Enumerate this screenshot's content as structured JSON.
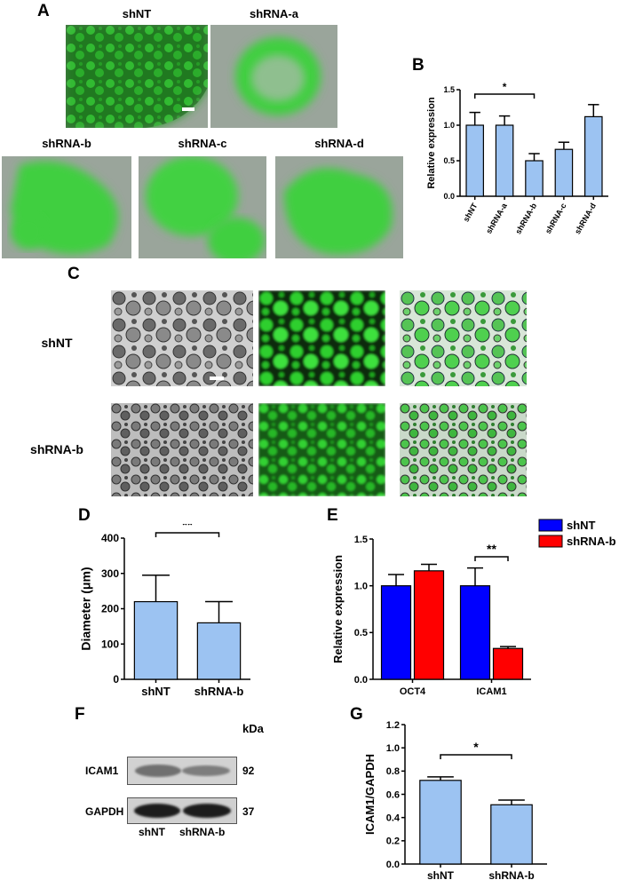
{
  "panel_labels": {
    "A": "A",
    "B": "B",
    "C": "C",
    "D": "D",
    "E": "E",
    "F": "F",
    "G": "G"
  },
  "panel_a": {
    "captions": [
      "shNT",
      "shRNA-a",
      "shRNA-b",
      "shRNA-c",
      "shRNA-d"
    ]
  },
  "panel_c": {
    "row_labels": [
      "shNT",
      "shRNA-b"
    ]
  },
  "panel_f": {
    "kda_label": "kDa",
    "rows": [
      {
        "label": "ICAM1",
        "kda": "92"
      },
      {
        "label": "GAPDH",
        "kda": "37"
      }
    ],
    "lanes": [
      "shNT",
      "shRNA-b"
    ]
  },
  "colors": {
    "bar_blue": "#9cc3f2",
    "series_blue": "#0000ff",
    "series_red": "#ff0000",
    "fluor_green": "#3ddc3d"
  },
  "chart_data": [
    {
      "id": "B",
      "type": "bar",
      "categories": [
        "shNT",
        "shRNA-a",
        "shRNA-b",
        "shRNA-c",
        "shRNA-d"
      ],
      "values": [
        1.0,
        1.0,
        0.5,
        0.66,
        1.12
      ],
      "errors": [
        0.18,
        0.13,
        0.1,
        0.1,
        0.17
      ],
      "ylabel": "Relative expression",
      "ylim": [
        0,
        1.5
      ],
      "yticks": [
        "0.0",
        "0.5",
        "1.0",
        "1.5"
      ],
      "significance": {
        "from": "shNT",
        "to": "shRNA-b",
        "label": "*"
      }
    },
    {
      "id": "D",
      "type": "bar",
      "categories": [
        "shNT",
        "shRNA-b"
      ],
      "values": [
        220,
        160
      ],
      "errors": [
        75,
        60
      ],
      "ylabel": "Diameter (μm)",
      "ylim": [
        0,
        400
      ],
      "yticks": [
        "0",
        "100",
        "200",
        "300",
        "400"
      ],
      "significance": {
        "from": "shNT",
        "to": "shRNA-b",
        "label": "**"
      }
    },
    {
      "id": "E",
      "type": "bar",
      "categories": [
        "OCT4",
        "ICAM1"
      ],
      "series": [
        {
          "name": "shNT",
          "values": [
            1.0,
            1.0
          ],
          "errors": [
            0.12,
            0.19
          ]
        },
        {
          "name": "shRNA-b",
          "values": [
            1.16,
            0.33
          ],
          "errors": [
            0.07,
            0.02
          ]
        }
      ],
      "ylabel": "Relative expression",
      "ylim": [
        0,
        1.5
      ],
      "yticks": [
        "0.0",
        "0.5",
        "1.0",
        "1.5"
      ],
      "legend": "top-right",
      "significance": {
        "category": "ICAM1",
        "label": "**"
      }
    },
    {
      "id": "G",
      "type": "bar",
      "categories": [
        "shNT",
        "shRNA-b"
      ],
      "values": [
        0.72,
        0.51
      ],
      "errors": [
        0.03,
        0.04
      ],
      "ylabel": "ICAM1/GAPDH",
      "ylim": [
        0,
        1.2
      ],
      "yticks": [
        "0.0",
        "0.2",
        "0.4",
        "0.6",
        "0.8",
        "1.0",
        "1.2"
      ],
      "significance": {
        "from": "shNT",
        "to": "shRNA-b",
        "label": "*"
      }
    }
  ]
}
